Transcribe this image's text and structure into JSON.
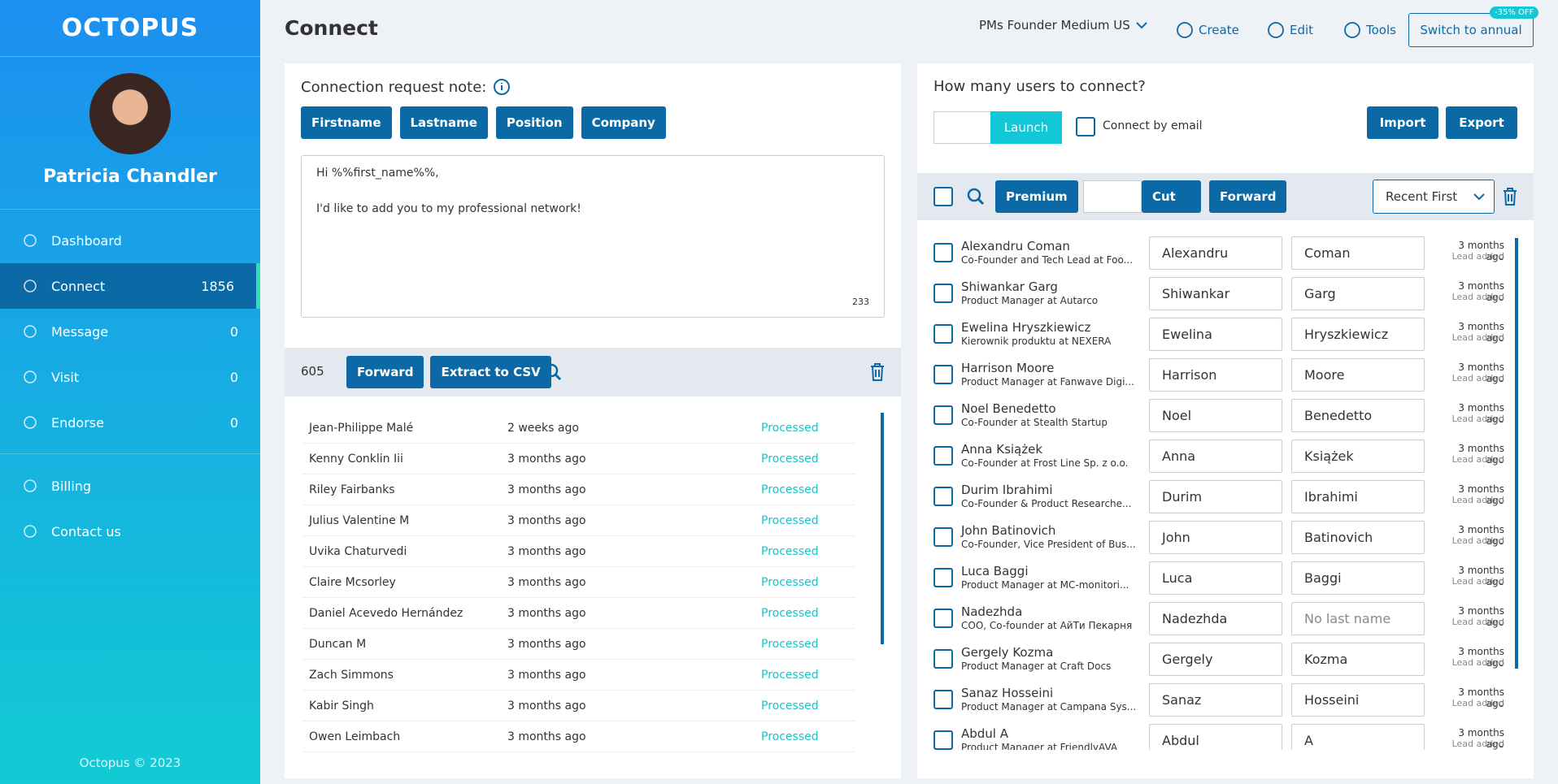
{
  "brand": "OCTOPUS",
  "user": {
    "name": "Patricia Chandler"
  },
  "nav": [
    {
      "label": "Dashboard"
    },
    {
      "label": "Connect",
      "count": 1856
    },
    {
      "label": "Message",
      "count": 0
    },
    {
      "label": "Visit",
      "count": 0
    },
    {
      "label": "Endorse",
      "count": 0
    },
    {
      "label": "Billing"
    },
    {
      "label": "Contact us"
    }
  ],
  "footer": "Octopus © 2023",
  "header": {
    "title": "Connect",
    "campaign": "PMs Founder Medium US",
    "actions": [
      "Create",
      "Edit",
      "Tools"
    ],
    "switch": "Switch to annual",
    "badge": "-35% OFF"
  },
  "note": {
    "label": "Connection request note:",
    "tags": [
      "Firstname",
      "Lastname",
      "Position",
      "Company"
    ],
    "text": "Hi %%first_name%%,\n\nI'd like to add you to my professional network!",
    "count": 233
  },
  "queue": {
    "count": 605,
    "buttons": [
      "Forward",
      "Extract to CSV"
    ],
    "rows": [
      [
        "Jean-Philippe Malé",
        "2 weeks ago",
        "Processed"
      ],
      [
        "Kenny Conklin Iii",
        "3 months ago",
        "Processed"
      ],
      [
        "Riley Fairbanks",
        "3 months ago",
        "Processed"
      ],
      [
        "Julius Valentine M",
        "3 months ago",
        "Processed"
      ],
      [
        "Uvika Chaturvedi",
        "3 months ago",
        "Processed"
      ],
      [
        "Claire Mcsorley",
        "3 months ago",
        "Processed"
      ],
      [
        "Daniel Acevedo Hernández",
        "3 months ago",
        "Processed"
      ],
      [
        "Duncan M",
        "3 months ago",
        "Processed"
      ],
      [
        "Zach Simmons",
        "3 months ago",
        "Processed"
      ],
      [
        "Kabir Singh",
        "3 months ago",
        "Processed"
      ],
      [
        "Owen Leimbach",
        "3 months ago",
        "Processed"
      ]
    ]
  },
  "connect": {
    "question": "How many users to connect?",
    "launch": "Launch",
    "by_email": "Connect by email",
    "import": "Import",
    "export": "Export",
    "premium": "Premium",
    "cut": "Cut",
    "forward": "Forward",
    "sort": "Recent First",
    "leads": [
      {
        "name": "Alexandru Coman",
        "title": "Co-Founder and Tech Lead at Foo...",
        "first": "Alexandru",
        "last": "Coman",
        "time": "3 months ago",
        "status": "Lead added"
      },
      {
        "name": "Shiwankar Garg",
        "title": "Product Manager at Autarco",
        "first": "Shiwankar",
        "last": "Garg",
        "time": "3 months ago",
        "status": "Lead added"
      },
      {
        "name": "Ewelina Hryszkiewicz",
        "title": "Kierownik produktu at NEXERA",
        "first": "Ewelina",
        "last": "Hryszkiewicz",
        "time": "3 months ago",
        "status": "Lead added"
      },
      {
        "name": "Harrison Moore",
        "title": "Product Manager at Fanwave Digi...",
        "first": "Harrison",
        "last": "Moore",
        "time": "3 months ago",
        "status": "Lead added"
      },
      {
        "name": "Noel Benedetto",
        "title": "Co-Founder at Stealth Startup",
        "first": "Noel",
        "last": "Benedetto",
        "time": "3 months ago",
        "status": "Lead added"
      },
      {
        "name": "Anna Książek",
        "title": "Co-Founder at Frost Line Sp. z o.o.",
        "first": "Anna",
        "last": "Książek",
        "time": "3 months ago",
        "status": "Lead added"
      },
      {
        "name": "Durim Ibrahimi",
        "title": "Co-Founder & Product Researche...",
        "first": "Durim",
        "last": "Ibrahimi",
        "time": "3 months ago",
        "status": "Lead added"
      },
      {
        "name": "John Batinovich",
        "title": "Co-Founder, Vice President of Bus...",
        "first": "John",
        "last": "Batinovich",
        "time": "3 months ago",
        "status": "Lead added"
      },
      {
        "name": "Luca Baggi",
        "title": "Product Manager at MC-monitori...",
        "first": "Luca",
        "last": "Baggi",
        "time": "3 months ago",
        "status": "Lead added"
      },
      {
        "name": "Nadezhda",
        "title": "COO, Co-founder at АйТи Пекарня",
        "first": "Nadezhda",
        "last_placeholder": "No last name",
        "time": "3 months ago",
        "status": "Lead added"
      },
      {
        "name": "Gergely Kozma",
        "title": "Product Manager at Craft Docs",
        "first": "Gergely",
        "last": "Kozma",
        "time": "3 months ago",
        "status": "Lead added"
      },
      {
        "name": "Sanaz Hosseini",
        "title": "Product Manager at Campana Sys...",
        "first": "Sanaz",
        "last": "Hosseini",
        "time": "3 months ago",
        "status": "Lead added"
      },
      {
        "name": "Abdul A",
        "title": "Product Manager at FriendlyAVA",
        "first": "Abdul",
        "last": "A",
        "time": "3 months ago",
        "status": "Lead added"
      }
    ]
  }
}
